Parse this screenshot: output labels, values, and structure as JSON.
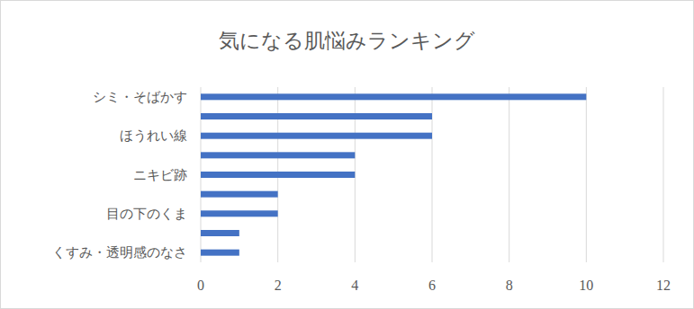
{
  "chart_data": {
    "type": "bar",
    "title": "気になる肌悩みランキング",
    "orientation": "horizontal",
    "categories": [
      "シミ・そばかす",
      null,
      "ほうれい線",
      null,
      "ニキビ跡",
      null,
      "目の下のくま",
      null,
      "くすみ・透明感のなさ"
    ],
    "values": [
      10,
      6,
      6,
      4,
      4,
      2,
      2,
      1,
      1
    ],
    "color": "#4472c4",
    "xlim": [
      0,
      12
    ],
    "xticks": [
      0,
      2,
      4,
      6,
      8,
      10,
      12
    ],
    "grid": true
  }
}
